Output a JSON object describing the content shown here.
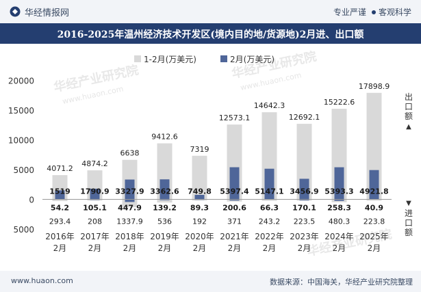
{
  "header": {
    "brand": "华经情报网",
    "tagline_left": "专业严谨",
    "tagline_right": "客观科学",
    "title": "2016-2025年温州经济技术开发区(境内目的地/货源地)2月进、出口额"
  },
  "footer": {
    "site": "www.huaon.com",
    "source": "数据来源：中国海关，华经产业研究院整理"
  },
  "watermark": "华经产业研究院",
  "watermark_url": "www.huaon.com",
  "axis_labels": {
    "export_label": "出口额",
    "export_arrow": "▲",
    "import_label": "进口额",
    "import_arrow": "▼"
  },
  "colors": {
    "cumulative": "#d9d9d9",
    "monthly": "#4f6699",
    "header": "#243e70"
  },
  "chart_data": {
    "type": "bar",
    "title": "2016-2025年温州经济技术开发区(境内目的地/货源地)2月进、出口额",
    "categories": [
      "2016年2月",
      "2017年2月",
      "2018年2月",
      "2019年2月",
      "2020年2月",
      "2021年2月",
      "2022年2月",
      "2023年2月",
      "2024年2月",
      "2025年2月"
    ],
    "legend_position": "top-center",
    "export_axis": {
      "ylim": [
        0,
        20000
      ],
      "ticks": [
        0,
        5000,
        10000,
        15000,
        20000
      ]
    },
    "import_axis_tick": 5000,
    "series": [
      {
        "name": "1-2月(万美元)",
        "role": "export",
        "values": [
          4071.2,
          4874.2,
          6638,
          9412.6,
          7319,
          12573.1,
          14642.3,
          12692.1,
          15222.6,
          17898.9
        ]
      },
      {
        "name": "2月(万美元)",
        "role": "export",
        "values": [
          1519,
          1790.9,
          3327.9,
          3362.6,
          749.8,
          5397.4,
          5147.1,
          3456.9,
          5393.3,
          4921.8
        ]
      },
      {
        "name": "1-2月(万美元)",
        "role": "import",
        "values": [
          293.4,
          208,
          1337.9,
          536,
          192,
          371,
          243.2,
          223.5,
          480.3,
          223.8
        ]
      },
      {
        "name": "2月(万美元)",
        "role": "import",
        "values": [
          54.2,
          105.1,
          447.9,
          139.2,
          89.3,
          200.6,
          66.3,
          170.1,
          258.3,
          40.9
        ]
      }
    ]
  }
}
